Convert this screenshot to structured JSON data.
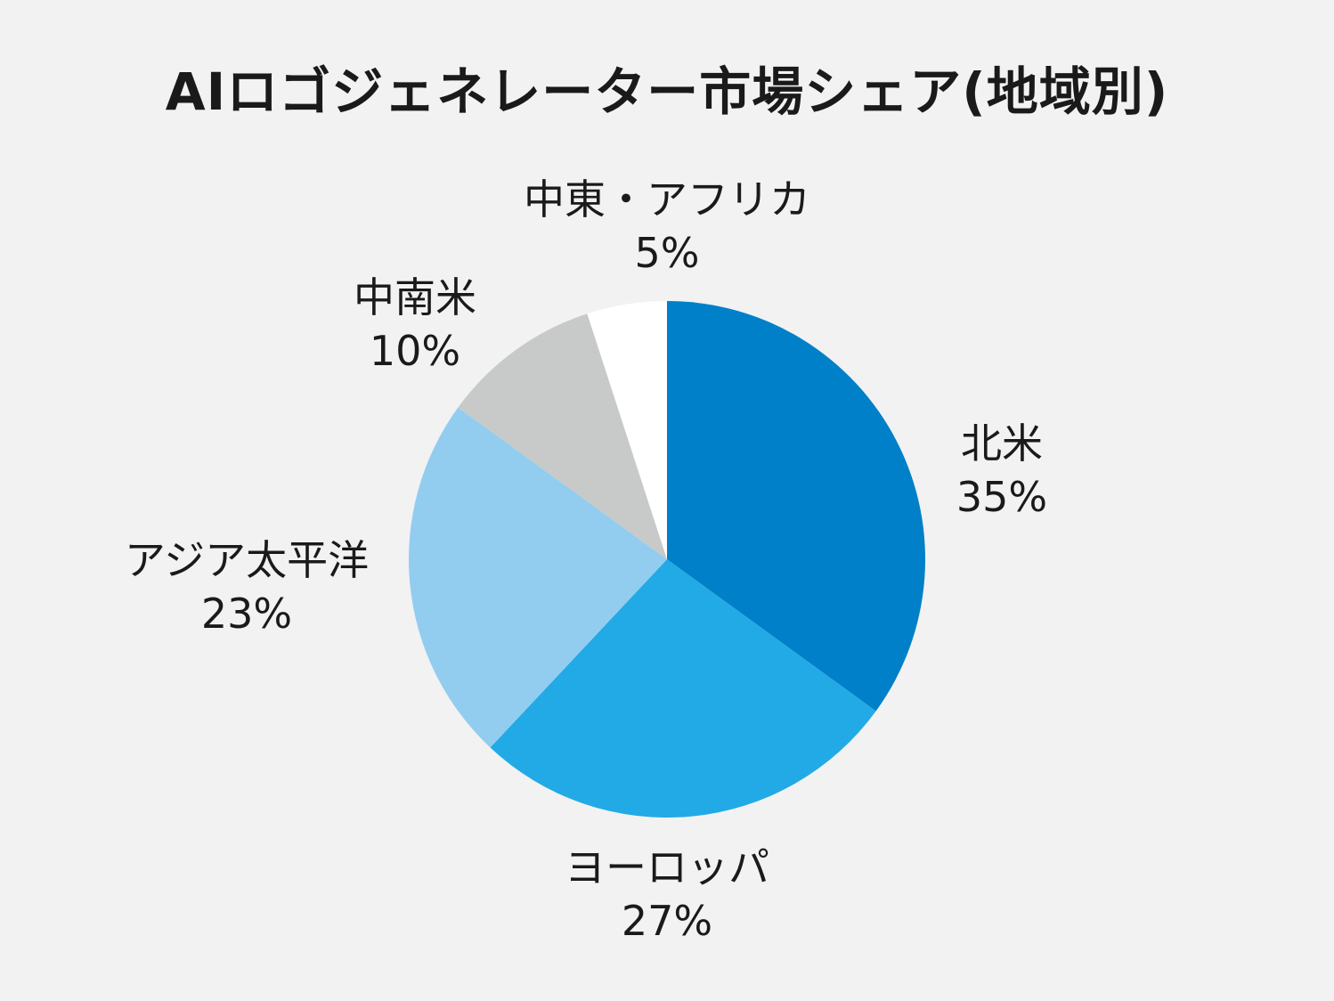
{
  "chart_data": {
    "type": "pie",
    "title": "AIロゴジェネレーター市場シェア(地域別)",
    "slices": [
      {
        "label": "北米",
        "value": 35,
        "value_label": "35%",
        "color": "#0080c8"
      },
      {
        "label": "ヨーロッパ",
        "value": 27,
        "value_label": "27%",
        "color": "#22aae6"
      },
      {
        "label": "アジア太平洋",
        "value": 23,
        "value_label": "23%",
        "color": "#92cdf0"
      },
      {
        "label": "中南米",
        "value": 10,
        "value_label": "10%",
        "color": "#c8cac9"
      },
      {
        "label": "中東・アフリカ",
        "value": 5,
        "value_label": "5%",
        "color": "#ffffff"
      }
    ],
    "start_angle_deg": 0,
    "direction": "clockwise"
  }
}
